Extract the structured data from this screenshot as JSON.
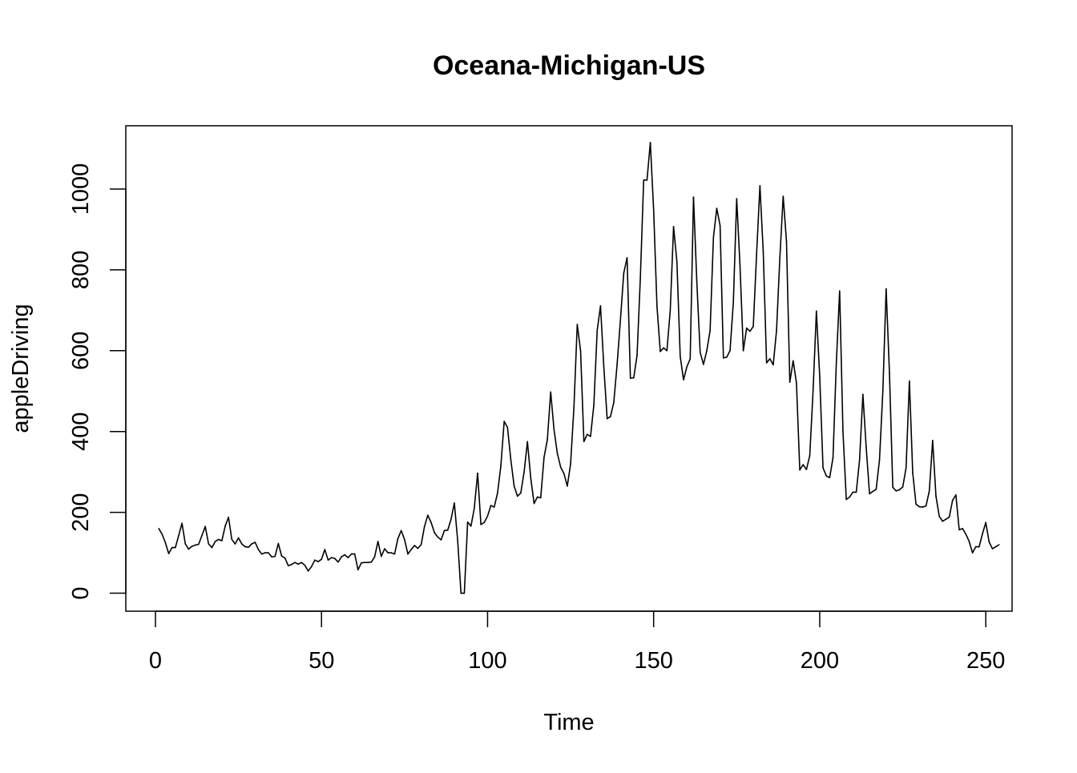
{
  "chart_data": {
    "type": "line",
    "title": "Oceana-Michigan-US",
    "xlabel": "Time",
    "ylabel": "appleDriving",
    "xlim": [
      -8.92,
      257.92
    ],
    "ylim": [
      -44.48,
      1156.48
    ],
    "x_ticks": [
      0,
      50,
      100,
      150,
      200,
      250
    ],
    "y_ticks": [
      0,
      200,
      400,
      600,
      800,
      1000
    ],
    "x_tick_labels": [
      "0",
      "50",
      "100",
      "150",
      "200",
      "250"
    ],
    "y_tick_labels": [
      "0",
      "200",
      "400",
      "600",
      "800",
      "1000"
    ],
    "grid": false,
    "legend": "none",
    "colors": {
      "line": "#000000",
      "axes": "#000000",
      "background": "#ffffff"
    },
    "series": [
      {
        "x_start": 1,
        "values": [
          160,
          146,
          125,
          98,
          113,
          113,
          143,
          173,
          122,
          109,
          116,
          119,
          121,
          143,
          165,
          122,
          113,
          128,
          133,
          130,
          166,
          188,
          133,
          122,
          137,
          122,
          115,
          114,
          122,
          126,
          108,
          97,
          100,
          100,
          90,
          91,
          123,
          92,
          87,
          68,
          71,
          76,
          72,
          76,
          69,
          55,
          66,
          82,
          78,
          84,
          108,
          82,
          88,
          86,
          77,
          90,
          95,
          88,
          97,
          97,
          58,
          75,
          76,
          76,
          77,
          90,
          128,
          91,
          110,
          100,
          100,
          97,
          135,
          155,
          133,
          97,
          108,
          118,
          111,
          120,
          165,
          193,
          175,
          150,
          139,
          132,
          155,
          156,
          183,
          223,
          130,
          0,
          0,
          176,
          166,
          210,
          297,
          170,
          175,
          191,
          217,
          213,
          248,
          315,
          425,
          410,
          330,
          265,
          240,
          248,
          300,
          375,
          285,
          222,
          238,
          236,
          336,
          380,
          498,
          405,
          346,
          312,
          296,
          265,
          320,
          460,
          665,
          600,
          375,
          393,
          388,
          466,
          650,
          711,
          560,
          432,
          437,
          472,
          566,
          676,
          792,
          830,
          532,
          533,
          588,
          780,
          1022,
          1022,
          1115,
          948,
          710,
          598,
          607,
          600,
          700,
          907,
          820,
          586,
          528,
          560,
          580,
          980,
          770,
          596,
          566,
          600,
          650,
          880,
          952,
          910,
          582,
          584,
          600,
          720,
          976,
          810,
          600,
          656,
          648,
          660,
          840,
          1008,
          845,
          570,
          580,
          565,
          650,
          830,
          982,
          870,
          522,
          575,
          520,
          305,
          318,
          306,
          340,
          500,
          698,
          536,
          310,
          290,
          286,
          335,
          570,
          748,
          400,
          232,
          238,
          250,
          250,
          330,
          492,
          360,
          246,
          252,
          257,
          330,
          498,
          753,
          545,
          262,
          253,
          256,
          263,
          310,
          525,
          298,
          220,
          214,
          213,
          216,
          253,
          378,
          240,
          190,
          178,
          183,
          188,
          230,
          243,
          157,
          160,
          146,
          128,
          100,
          115,
          115,
          147,
          175,
          127,
          110,
          115,
          120
        ]
      }
    ]
  }
}
